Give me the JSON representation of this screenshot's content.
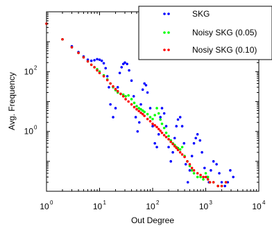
{
  "chart_data": {
    "type": "scatter",
    "xlabel": "Out Degree",
    "ylabel": "Avg. Frequency",
    "xscale": "log",
    "yscale": "log",
    "xlim": [
      1,
      10000
    ],
    "ylim": [
      0.01,
      10000
    ],
    "x_ticks": [
      {
        "base": "10",
        "exp": "0",
        "value": 1
      },
      {
        "base": "10",
        "exp": "1",
        "value": 10
      },
      {
        "base": "10",
        "exp": "2",
        "value": 100
      },
      {
        "base": "10",
        "exp": "3",
        "value": 1000
      },
      {
        "base": "10",
        "exp": "4",
        "value": 10000
      }
    ],
    "y_ticks": [
      {
        "base": "10",
        "exp": "0",
        "value": 1
      },
      {
        "base": "10",
        "exp": "2",
        "value": 100
      }
    ],
    "legend_position": "top-right",
    "grid": false,
    "series": [
      {
        "name": "SKG",
        "color": "#0000ff",
        "x": [
          1,
          2,
          3,
          4,
          5,
          6,
          7,
          8,
          9,
          10,
          11,
          12,
          13,
          14,
          15,
          16,
          18,
          20,
          22,
          24,
          26,
          28,
          30,
          33,
          36,
          40,
          44,
          48,
          52,
          56,
          60,
          65,
          70,
          75,
          80,
          90,
          100,
          110,
          120,
          130,
          140,
          150,
          165,
          180,
          200,
          220,
          240,
          260,
          280,
          300,
          330,
          360,
          390,
          420,
          460,
          500,
          550,
          600,
          650,
          700,
          780,
          850,
          950,
          1050,
          1150,
          1250,
          1400,
          1600,
          1800,
          2000,
          2300,
          2600,
          2900,
          3300
        ],
        "y": [
          4000,
          1200,
          700,
          450,
          320,
          250,
          230,
          240,
          260,
          250,
          230,
          190,
          130,
          70,
          30,
          8,
          3,
          6,
          30,
          90,
          140,
          180,
          200,
          180,
          110,
          50,
          15,
          3,
          1,
          2,
          8,
          25,
          40,
          35,
          20,
          6,
          1.5,
          0.4,
          0.3,
          0.8,
          3,
          6,
          4,
          1.5,
          0.3,
          0.1,
          0.2,
          0.6,
          1.5,
          2.5,
          3,
          1.5,
          0.4,
          0.08,
          0.02,
          0.05,
          0.15,
          0.4,
          0.6,
          0.8,
          0.5,
          0.2,
          0.06,
          0.03,
          0.02,
          0.05,
          0.1,
          0.08,
          0.04,
          0.02,
          0.015,
          0.02,
          0.05,
          0.03
        ]
      },
      {
        "name": "Noisy SKG (0.05)",
        "color": "#00ff00",
        "x": [
          1,
          2,
          3,
          4,
          5,
          6,
          7,
          8,
          9,
          10,
          12,
          14,
          16,
          18,
          20,
          22,
          25,
          28,
          31,
          35,
          40,
          45,
          50,
          55,
          60,
          65,
          70,
          80,
          90,
          100,
          110,
          120,
          130,
          140,
          150,
          165,
          180,
          200,
          220,
          240,
          260,
          280,
          300,
          330,
          360,
          400,
          450,
          500,
          550,
          600,
          700,
          800,
          900,
          1000,
          1100,
          1200,
          1400,
          1700,
          2000,
          2400
        ],
        "y": [
          4000,
          1200,
          650,
          420,
          300,
          220,
          170,
          140,
          120,
          100,
          75,
          55,
          40,
          30,
          24,
          20,
          18,
          17,
          15,
          16,
          12,
          9,
          7,
          6,
          5.5,
          5,
          4.5,
          3.8,
          3,
          2.6,
          3.5,
          6,
          4,
          2.5,
          1.8,
          1.3,
          0.9,
          0.7,
          0.5,
          0.4,
          0.35,
          0.3,
          0.28,
          0.25,
          0.3,
          0.15,
          0.1,
          0.07,
          0.05,
          0.04,
          0.03,
          0.03,
          0.025,
          0.04,
          0.03,
          0.02,
          0.02,
          0.015,
          0.015,
          0.02
        ]
      },
      {
        "name": "Nosiy SKG (0.10)",
        "color": "#ff0000",
        "x": [
          1,
          2,
          3,
          4,
          5,
          6,
          7,
          8,
          9,
          10,
          12,
          14,
          16,
          18,
          20,
          22,
          25,
          28,
          31,
          35,
          40,
          45,
          50,
          55,
          60,
          65,
          70,
          80,
          90,
          100,
          110,
          120,
          130,
          140,
          150,
          165,
          180,
          200,
          220,
          240,
          260,
          280,
          300,
          330,
          360,
          400,
          450,
          500,
          550,
          600,
          700,
          800,
          900,
          1000,
          1100,
          1200,
          1400,
          1700,
          2000,
          2400
        ],
        "y": [
          4000,
          1200,
          650,
          420,
          300,
          220,
          170,
          140,
          110,
          90,
          70,
          52,
          40,
          32,
          26,
          22,
          18,
          15,
          12,
          10,
          8,
          6.5,
          5.5,
          4.8,
          4.2,
          3.8,
          3.3,
          2.6,
          2.2,
          1.8,
          1.6,
          1.4,
          1.2,
          1.05,
          0.9,
          0.75,
          0.65,
          0.55,
          0.45,
          0.38,
          0.32,
          0.28,
          0.24,
          0.2,
          0.17,
          0.14,
          0.1,
          0.08,
          0.06,
          0.05,
          0.04,
          0.035,
          0.03,
          0.03,
          0.025,
          0.02,
          0.02,
          0.015,
          0.015,
          0.02
        ]
      }
    ]
  }
}
